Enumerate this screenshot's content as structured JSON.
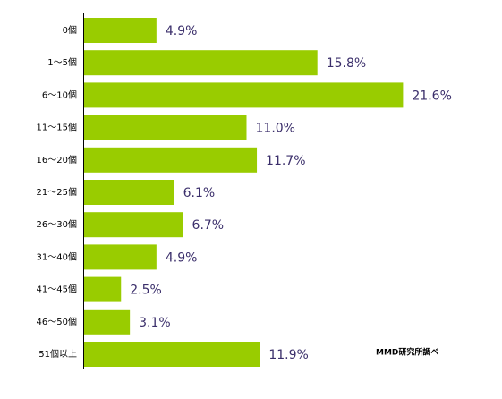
{
  "chart_data": {
    "type": "bar",
    "orientation": "horizontal",
    "categories": [
      "0個",
      "1～5個",
      "6～10個",
      "11～15個",
      "16～20個",
      "21～25個",
      "26～30個",
      "31～40個",
      "41～45個",
      "46～50個",
      "51個以上"
    ],
    "values": [
      4.9,
      15.8,
      21.6,
      11.0,
      11.7,
      6.1,
      6.7,
      4.9,
      2.5,
      3.1,
      11.9
    ],
    "value_labels": [
      "4.9%",
      "15.8%",
      "21.6%",
      "11.0%",
      "11.7%",
      "6.1%",
      "6.7%",
      "4.9%",
      "2.5%",
      "3.1%",
      "11.9%"
    ],
    "color": "#99cc00",
    "annotation": "MMD研究所調べ"
  }
}
